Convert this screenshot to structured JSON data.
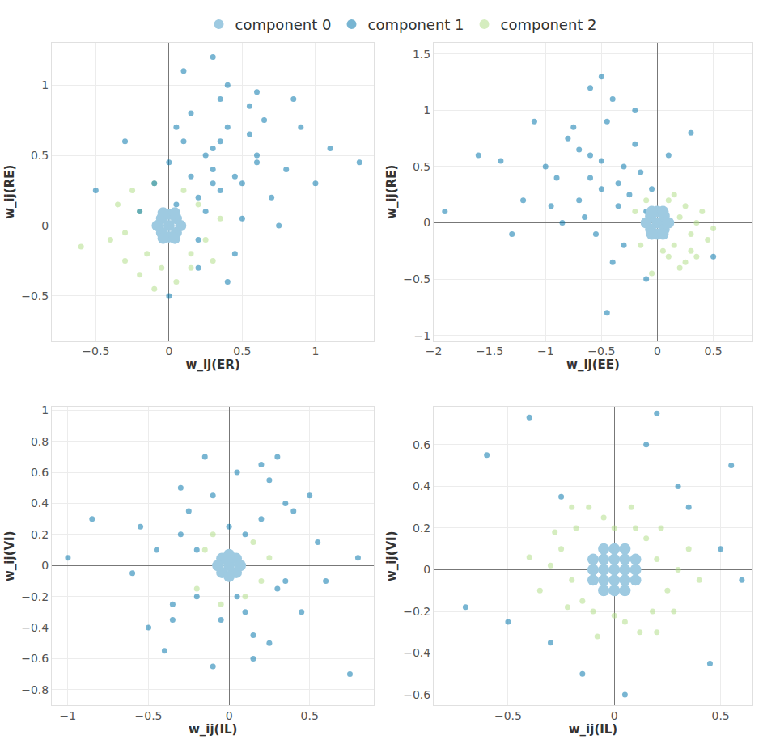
{
  "chart_data": [
    {
      "type": "scatter",
      "x_label": "w_ij(ER)",
      "y_label": "w_ij(RE)",
      "grid": true,
      "legend": "top",
      "xlim": [
        -0.8,
        1.4
      ],
      "ylim": [
        -0.82,
        1.3
      ],
      "xticks": [
        {
          "value": -0.5,
          "label": "−0.5"
        },
        0,
        0.5,
        1
      ],
      "yticks": [
        {
          "value": -0.5,
          "label": "−0.5"
        },
        0,
        0.5,
        1
      ],
      "series": [
        {
          "name": "component 0",
          "color": "#9ecae1",
          "x": [
            0,
            0.05,
            -0.05,
            0.05,
            -0.05,
            0.08,
            -0.08,
            0,
            0,
            0.04,
            -0.04,
            0.04,
            -0.04
          ],
          "y": [
            0,
            0.05,
            0.05,
            -0.05,
            -0.05,
            0,
            0,
            0.08,
            -0.08,
            0.09,
            0.09,
            -0.09,
            -0.09
          ]
        },
        {
          "name": "component 1",
          "color": "#0a78ad",
          "x": [
            0.3,
            0.1,
            0.5,
            0.2,
            0.4,
            0.6,
            0.0,
            0.35,
            0.25,
            0.45,
            0.7,
            0.15,
            -0.1,
            0.55,
            0.3,
            0.8,
            0.05,
            0.65,
            0.4,
            0.2,
            1.0,
            -0.3,
            0.9,
            0.35,
            0.5,
            0.1,
            0.6,
            0.25,
            -0.2,
            1.1,
            0.45,
            0.3,
            0.75,
            0.15,
            0.55,
            -0.5,
            0.4,
            0.2,
            0.85,
            0.05,
            1.3,
            0.35,
            0.6,
            0.0,
            0.3
          ],
          "y": [
            0.4,
            0.6,
            0.3,
            0.2,
            0.7,
            0.5,
            0.45,
            0.9,
            0.1,
            0.35,
            0.2,
            0.8,
            0.3,
            0.65,
            0.55,
            0.4,
            0.15,
            0.75,
            1.0,
            -0.1,
            0.3,
            0.6,
            0.7,
            0.25,
            0.05,
            1.1,
            0.95,
            0.5,
            0.1,
            0.55,
            -0.2,
            1.2,
            0.0,
            0.35,
            0.85,
            0.25,
            -0.4,
            -0.3,
            0.9,
            0.7,
            0.45,
            0.6,
            0.45,
            -0.5,
            0.3
          ]
        },
        {
          "name": "component 2",
          "color": "#b2df8a",
          "x": [
            -0.2,
            -0.3,
            -0.15,
            0.15,
            0.25,
            -0.25,
            -0.1,
            0.1,
            -0.35,
            0.2,
            -0.05,
            0.3,
            -0.4,
            -0.2,
            0.05,
            0.35,
            -0.3,
            0.15,
            -0.6,
            -0.1
          ],
          "y": [
            0.1,
            -0.05,
            -0.2,
            -0.2,
            -0.1,
            0.25,
            0.3,
            0.25,
            0.15,
            0.15,
            -0.3,
            -0.25,
            -0.1,
            -0.35,
            -0.4,
            0.05,
            -0.25,
            -0.3,
            -0.15,
            -0.45
          ]
        }
      ]
    },
    {
      "type": "scatter",
      "x_label": "w_ij(EE)",
      "y_label": "w_ij(RE)",
      "grid": true,
      "xlim": [
        -2,
        0.85
      ],
      "ylim": [
        -1.05,
        1.6
      ],
      "xticks": [
        {
          "value": -2,
          "label": "−2"
        },
        {
          "value": -1.5,
          "label": "−1.5"
        },
        {
          "value": -1,
          "label": "−1"
        },
        {
          "value": -0.5,
          "label": "−0.5"
        },
        0,
        0.5
      ],
      "yticks": [
        {
          "value": -1,
          "label": "−1"
        },
        {
          "value": -0.5,
          "label": "−0.5"
        },
        0,
        0.5,
        1,
        1.5
      ],
      "series": [
        {
          "name": "component 0",
          "color": "#9ecae1",
          "x": [
            0,
            0.06,
            -0.06,
            0.06,
            -0.06,
            0.1,
            -0.1,
            0,
            0,
            0.05,
            -0.05,
            0.05,
            -0.05
          ],
          "y": [
            0,
            0.06,
            0.06,
            -0.06,
            -0.06,
            0,
            0,
            0.1,
            -0.1,
            0.1,
            0.1,
            -0.1,
            -0.1
          ]
        },
        {
          "name": "component 1",
          "color": "#0a78ad",
          "x": [
            -0.5,
            -0.3,
            -0.7,
            -0.2,
            -0.6,
            -0.9,
            -0.1,
            -0.45,
            -0.35,
            -0.8,
            -1.0,
            -0.25,
            -0.55,
            -1.2,
            -0.4,
            -0.65,
            0.1,
            -0.75,
            -0.15,
            -1.4,
            -0.5,
            -0.3,
            -0.85,
            -0.05,
            -1.1,
            -0.6,
            -0.2,
            -1.6,
            -0.4,
            0.3,
            -0.7,
            -0.95,
            -0.5,
            -1.3,
            -0.35,
            -1.9,
            -0.1,
            -0.6,
            -0.45,
            0.5
          ],
          "y": [
            0.3,
            0.5,
            0.2,
            0.7,
            0.6,
            0.4,
            0.1,
            0.9,
            0.35,
            0.75,
            0.5,
            0.25,
            -0.1,
            0.2,
            1.1,
            0.05,
            0.6,
            0.85,
            0.45,
            0.55,
            1.3,
            -0.2,
            0.0,
            0.3,
            0.9,
            0.4,
            1.0,
            0.6,
            -0.35,
            0.8,
            0.65,
            0.15,
            0.55,
            -0.1,
            0.15,
            0.1,
            -0.5,
            1.2,
            -0.8,
            -0.3
          ]
        },
        {
          "name": "component 2",
          "color": "#b2df8a",
          "x": [
            0.2,
            0.3,
            0.15,
            -0.15,
            0.25,
            0.35,
            0.1,
            -0.1,
            0.3,
            0.45,
            0.2,
            0.05,
            -0.2,
            0.4,
            0.15,
            0.25,
            -0.05,
            0.35,
            0.1,
            0.5
          ],
          "y": [
            0.05,
            -0.1,
            -0.2,
            -0.2,
            0.15,
            0.0,
            -0.3,
            0.2,
            -0.25,
            -0.15,
            -0.4,
            -0.25,
            0.1,
            0.1,
            0.25,
            -0.35,
            -0.45,
            -0.3,
            0.2,
            -0.05
          ]
        }
      ]
    },
    {
      "type": "scatter",
      "x_label": "w_ij(IL)",
      "y_label": "w_ij(VI)",
      "grid": true,
      "xlim": [
        -1.1,
        0.9
      ],
      "ylim": [
        -0.9,
        1.02
      ],
      "xticks": [
        {
          "value": -1,
          "label": "−1"
        },
        {
          "value": -0.5,
          "label": "−0.5"
        },
        0,
        0.5
      ],
      "yticks": [
        {
          "value": -0.8,
          "label": "−0.8"
        },
        {
          "value": -0.6,
          "label": "−0.6"
        },
        {
          "value": -0.4,
          "label": "−0.4"
        },
        {
          "value": -0.2,
          "label": "−0.2"
        },
        0,
        0.2,
        0.4,
        0.6,
        0.8,
        1
      ],
      "series": [
        {
          "name": "component 0",
          "color": "#9ecae1",
          "x": [
            0,
            0.045,
            -0.045,
            0.045,
            -0.045,
            0.07,
            -0.07,
            0,
            0
          ],
          "y": [
            0,
            0.045,
            0.045,
            -0.045,
            -0.045,
            0,
            0,
            0.07,
            -0.07
          ]
        },
        {
          "name": "component 1",
          "color": "#0a78ad",
          "x": [
            -0.3,
            0.2,
            -0.1,
            0.35,
            -0.45,
            0.1,
            0.4,
            -0.2,
            0.25,
            -0.35,
            0.05,
            0.55,
            -0.6,
            0.15,
            -0.25,
            0.3,
            -0.05,
            0.45,
            -0.15,
            0.2,
            -0.5,
            0.6,
            -0.3,
            0.1,
            -0.85,
            0.8,
            -0.4,
            0.35,
            -0.1,
            0.0,
            0.25,
            -0.2,
            0.5,
            -0.55,
            0.15,
            -1.0,
            0.3,
            -0.35,
            0.05,
            0.75
          ],
          "y": [
            0.2,
            0.3,
            0.45,
            -0.1,
            0.1,
            -0.3,
            0.35,
            -0.2,
            0.55,
            -0.25,
            0.6,
            0.15,
            -0.05,
            -0.45,
            0.35,
            -0.15,
            -0.35,
            -0.3,
            0.7,
            0.65,
            -0.4,
            -0.1,
            0.5,
            0.2,
            0.3,
            0.05,
            -0.55,
            0.4,
            -0.65,
            0.25,
            -0.5,
            0.1,
            0.45,
            0.25,
            -0.6,
            0.05,
            0.7,
            -0.35,
            -0.2,
            -0.7
          ]
        },
        {
          "name": "component 2",
          "color": "#b2df8a",
          "x": [
            0.15,
            -0.15,
            0.2,
            -0.2,
            0.1,
            -0.1,
            0.25,
            -0.05
          ],
          "y": [
            0.15,
            0.1,
            -0.1,
            -0.15,
            -0.2,
            0.2,
            0.05,
            -0.25
          ]
        }
      ]
    },
    {
      "type": "scatter",
      "x_label": "w_ij(IL)",
      "y_label": "w_ij(VI)",
      "grid": true,
      "xlim": [
        -0.85,
        0.65
      ],
      "ylim": [
        -0.65,
        0.78
      ],
      "xticks": [
        {
          "value": -0.5,
          "label": "−0.5"
        },
        0,
        0.5
      ],
      "yticks": [
        {
          "value": -0.6,
          "label": "−0.6"
        },
        {
          "value": -0.4,
          "label": "−0.4"
        },
        {
          "value": -0.2,
          "label": "−0.2"
        },
        0,
        0.2,
        0.4,
        0.6
      ],
      "series": [
        {
          "name": "component 0",
          "color": "#9ecae1",
          "x": [
            -0.05,
            0,
            0.05,
            -0.1,
            -0.05,
            0,
            0.05,
            0.1,
            -0.1,
            -0.05,
            0,
            0.05,
            0.1,
            -0.1,
            -0.05,
            0,
            0.05,
            0.1,
            -0.05,
            0,
            0.05
          ],
          "y": [
            -0.1,
            -0.1,
            -0.1,
            -0.05,
            -0.05,
            -0.05,
            -0.05,
            -0.05,
            0,
            0,
            0,
            0,
            0,
            0.05,
            0.05,
            0.05,
            0.05,
            0.05,
            0.1,
            0.1,
            0.1
          ]
        },
        {
          "name": "component 1",
          "color": "#0a78ad",
          "x": [
            -0.6,
            0.55,
            -0.4,
            0.45,
            -0.3,
            0.2,
            0.6,
            -0.7,
            0.15,
            -0.15,
            0.35,
            -0.5,
            0.05,
            0.3,
            -0.25,
            0.5
          ],
          "y": [
            0.55,
            0.5,
            0.73,
            -0.45,
            -0.35,
            0.75,
            -0.05,
            -0.18,
            0.6,
            -0.5,
            0.3,
            -0.25,
            -0.6,
            0.4,
            0.35,
            0.1
          ]
        },
        {
          "name": "component 2",
          "color": "#b2df8a",
          "x": [
            0.2,
            -0.2,
            0.15,
            -0.15,
            0.25,
            -0.25,
            0.1,
            -0.1,
            0.3,
            -0.3,
            0.18,
            -0.18,
            0.05,
            -0.05,
            0.35,
            -0.35,
            0.22,
            -0.22,
            0.28,
            -0.28,
            0.12,
            -0.12,
            0.0,
            0.0,
            0.4,
            -0.4,
            0.2,
            -0.2,
            0.08,
            -0.08
          ],
          "y": [
            0.05,
            -0.05,
            0.15,
            -0.15,
            -0.1,
            0.1,
            0.2,
            -0.2,
            0.0,
            0.02,
            -0.2,
            0.2,
            -0.25,
            0.25,
            0.1,
            -0.1,
            0.2,
            -0.18,
            -0.2,
            0.18,
            -0.3,
            0.3,
            0.2,
            -0.22,
            -0.05,
            0.06,
            -0.3,
            0.3,
            0.3,
            -0.32
          ]
        }
      ]
    }
  ]
}
